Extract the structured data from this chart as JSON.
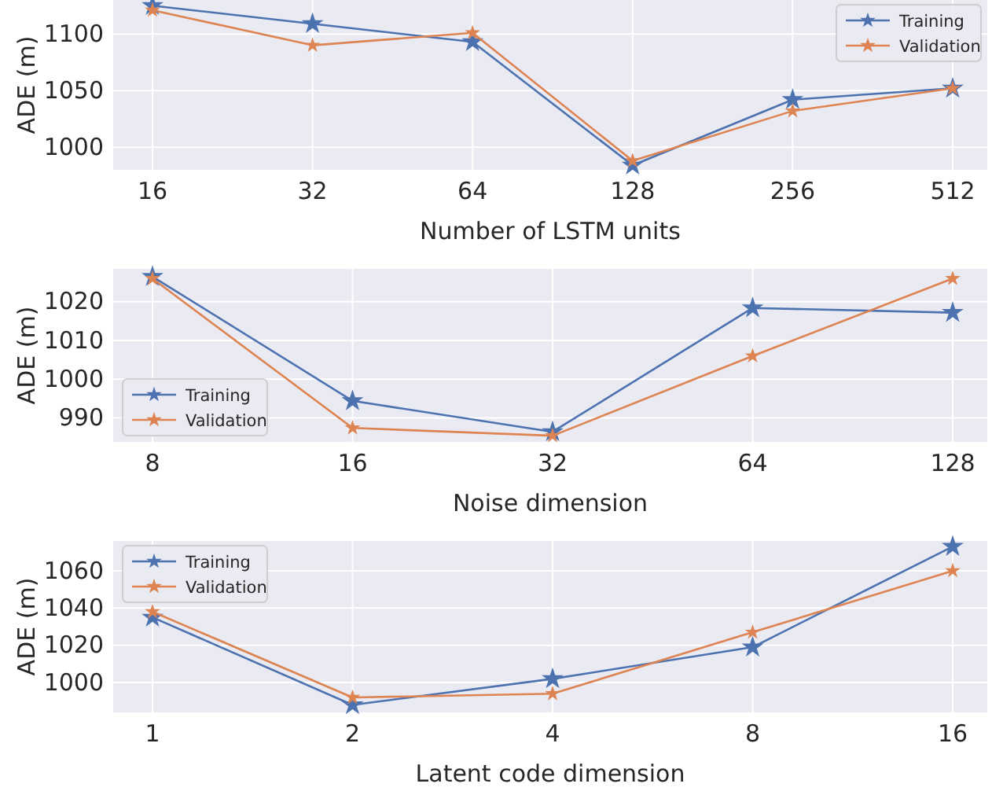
{
  "chart_data": [
    {
      "type": "line",
      "categories": [
        "16",
        "32",
        "64",
        "128",
        "256",
        "512"
      ],
      "xlabel": "Number of LSTM units",
      "ylabel": "ADE (m)",
      "ylim": [
        980,
        1130
      ],
      "yticks": [
        1000,
        1050,
        1100
      ],
      "grid": true,
      "legend": "top right",
      "marker": "star",
      "line_style": "solid",
      "series": [
        {
          "name": "Training",
          "color": "#4c72b0",
          "values": [
            1125,
            1109,
            1093,
            984,
            1042,
            1052
          ]
        },
        {
          "name": "Validation",
          "color": "#dd8452",
          "values": [
            1121,
            1090,
            1101,
            988,
            1032,
            1052
          ]
        }
      ]
    },
    {
      "type": "line",
      "categories": [
        "8",
        "16",
        "32",
        "64",
        "128"
      ],
      "xlabel": "Noise dimension",
      "ylabel": "ADE (m)",
      "ylim": [
        983.8,
        1028.5
      ],
      "yticks": [
        990,
        1000,
        1010,
        1020
      ],
      "grid": true,
      "legend": "bottom left",
      "marker": "star",
      "line_style": "solid",
      "series": [
        {
          "name": "Training",
          "color": "#4c72b0",
          "values": [
            1026.5,
            994.4,
            986.4,
            1018.4,
            1017.2
          ]
        },
        {
          "name": "Validation",
          "color": "#dd8452",
          "values": [
            1026,
            987.4,
            985.4,
            1006,
            1026
          ]
        }
      ]
    },
    {
      "type": "line",
      "categories": [
        "1",
        "2",
        "4",
        "8",
        "16"
      ],
      "xlabel": "Latent code dimension",
      "ylabel": "ADE (m)",
      "ylim": [
        984,
        1076
      ],
      "yticks": [
        1000,
        1020,
        1040,
        1060
      ],
      "grid": true,
      "legend": "top left",
      "marker": "star",
      "line_style": "solid",
      "series": [
        {
          "name": "Training",
          "color": "#4c72b0",
          "values": [
            1035,
            988,
            1002,
            1019,
            1073
          ]
        },
        {
          "name": "Validation",
          "color": "#dd8452",
          "values": [
            1038,
            992,
            994,
            1027,
            1060
          ]
        }
      ]
    }
  ]
}
